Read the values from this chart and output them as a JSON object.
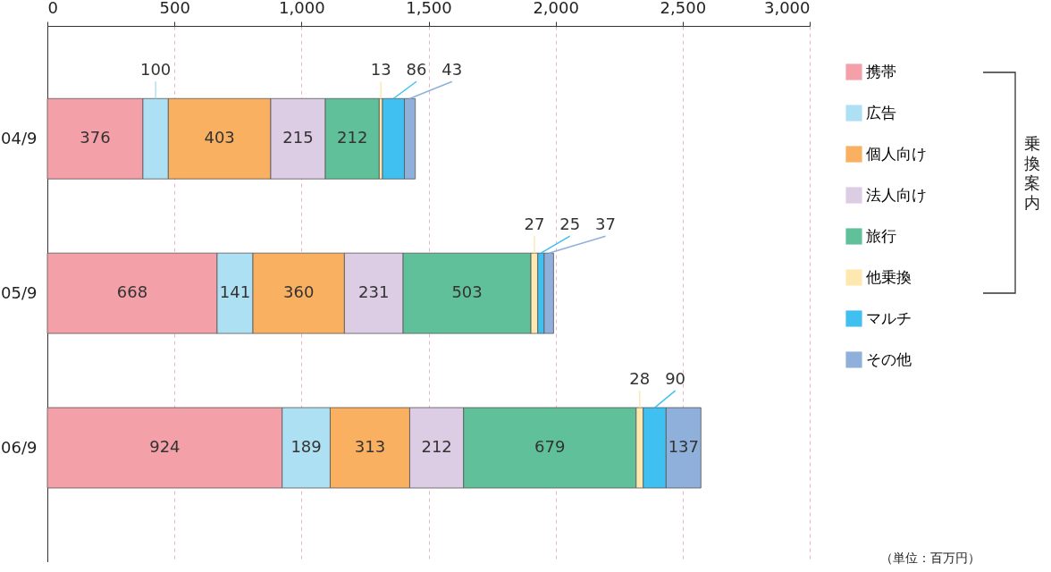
{
  "chart_data": {
    "type": "bar",
    "orientation": "horizontal",
    "stacked": true,
    "data_labels": true,
    "grid": "x",
    "legend": "right",
    "categories": [
      "04/9",
      "05/9",
      "06/9"
    ],
    "xlim": [
      0,
      3000
    ],
    "xticks": [
      0,
      500,
      {
        "value": 1000,
        "label": "1,000"
      },
      {
        "value": 1500,
        "label": "1,500"
      },
      {
        "value": 2000,
        "label": "2,000"
      },
      {
        "value": 2500,
        "label": "2,500"
      },
      {
        "value": 3000,
        "label": "3,000"
      }
    ],
    "series": [
      {
        "name": "携帯",
        "color": "#f4a0a8",
        "values": [
          376,
          668,
          924
        ]
      },
      {
        "name": "広告",
        "color": "#aee0f4",
        "values": [
          100,
          141,
          189
        ]
      },
      {
        "name": "個人向け",
        "color": "#f9b060",
        "values": [
          403,
          360,
          313
        ]
      },
      {
        "name": "法人向け",
        "color": "#dccce4",
        "values": [
          215,
          231,
          212
        ]
      },
      {
        "name": "旅行",
        "color": "#60c09a",
        "values": [
          212,
          503,
          679
        ]
      },
      {
        "name": "他乗換",
        "color": "#fde8b0",
        "values": [
          13,
          27,
          28
        ]
      },
      {
        "name": "マルチ",
        "color": "#40c0f0",
        "values": [
          86,
          25,
          90
        ]
      },
      {
        "name": "その他",
        "color": "#90b0dc",
        "values": [
          43,
          37,
          137
        ]
      }
    ],
    "annotations": [
      "乗換案内",
      "（単位：百万円）"
    ]
  }
}
